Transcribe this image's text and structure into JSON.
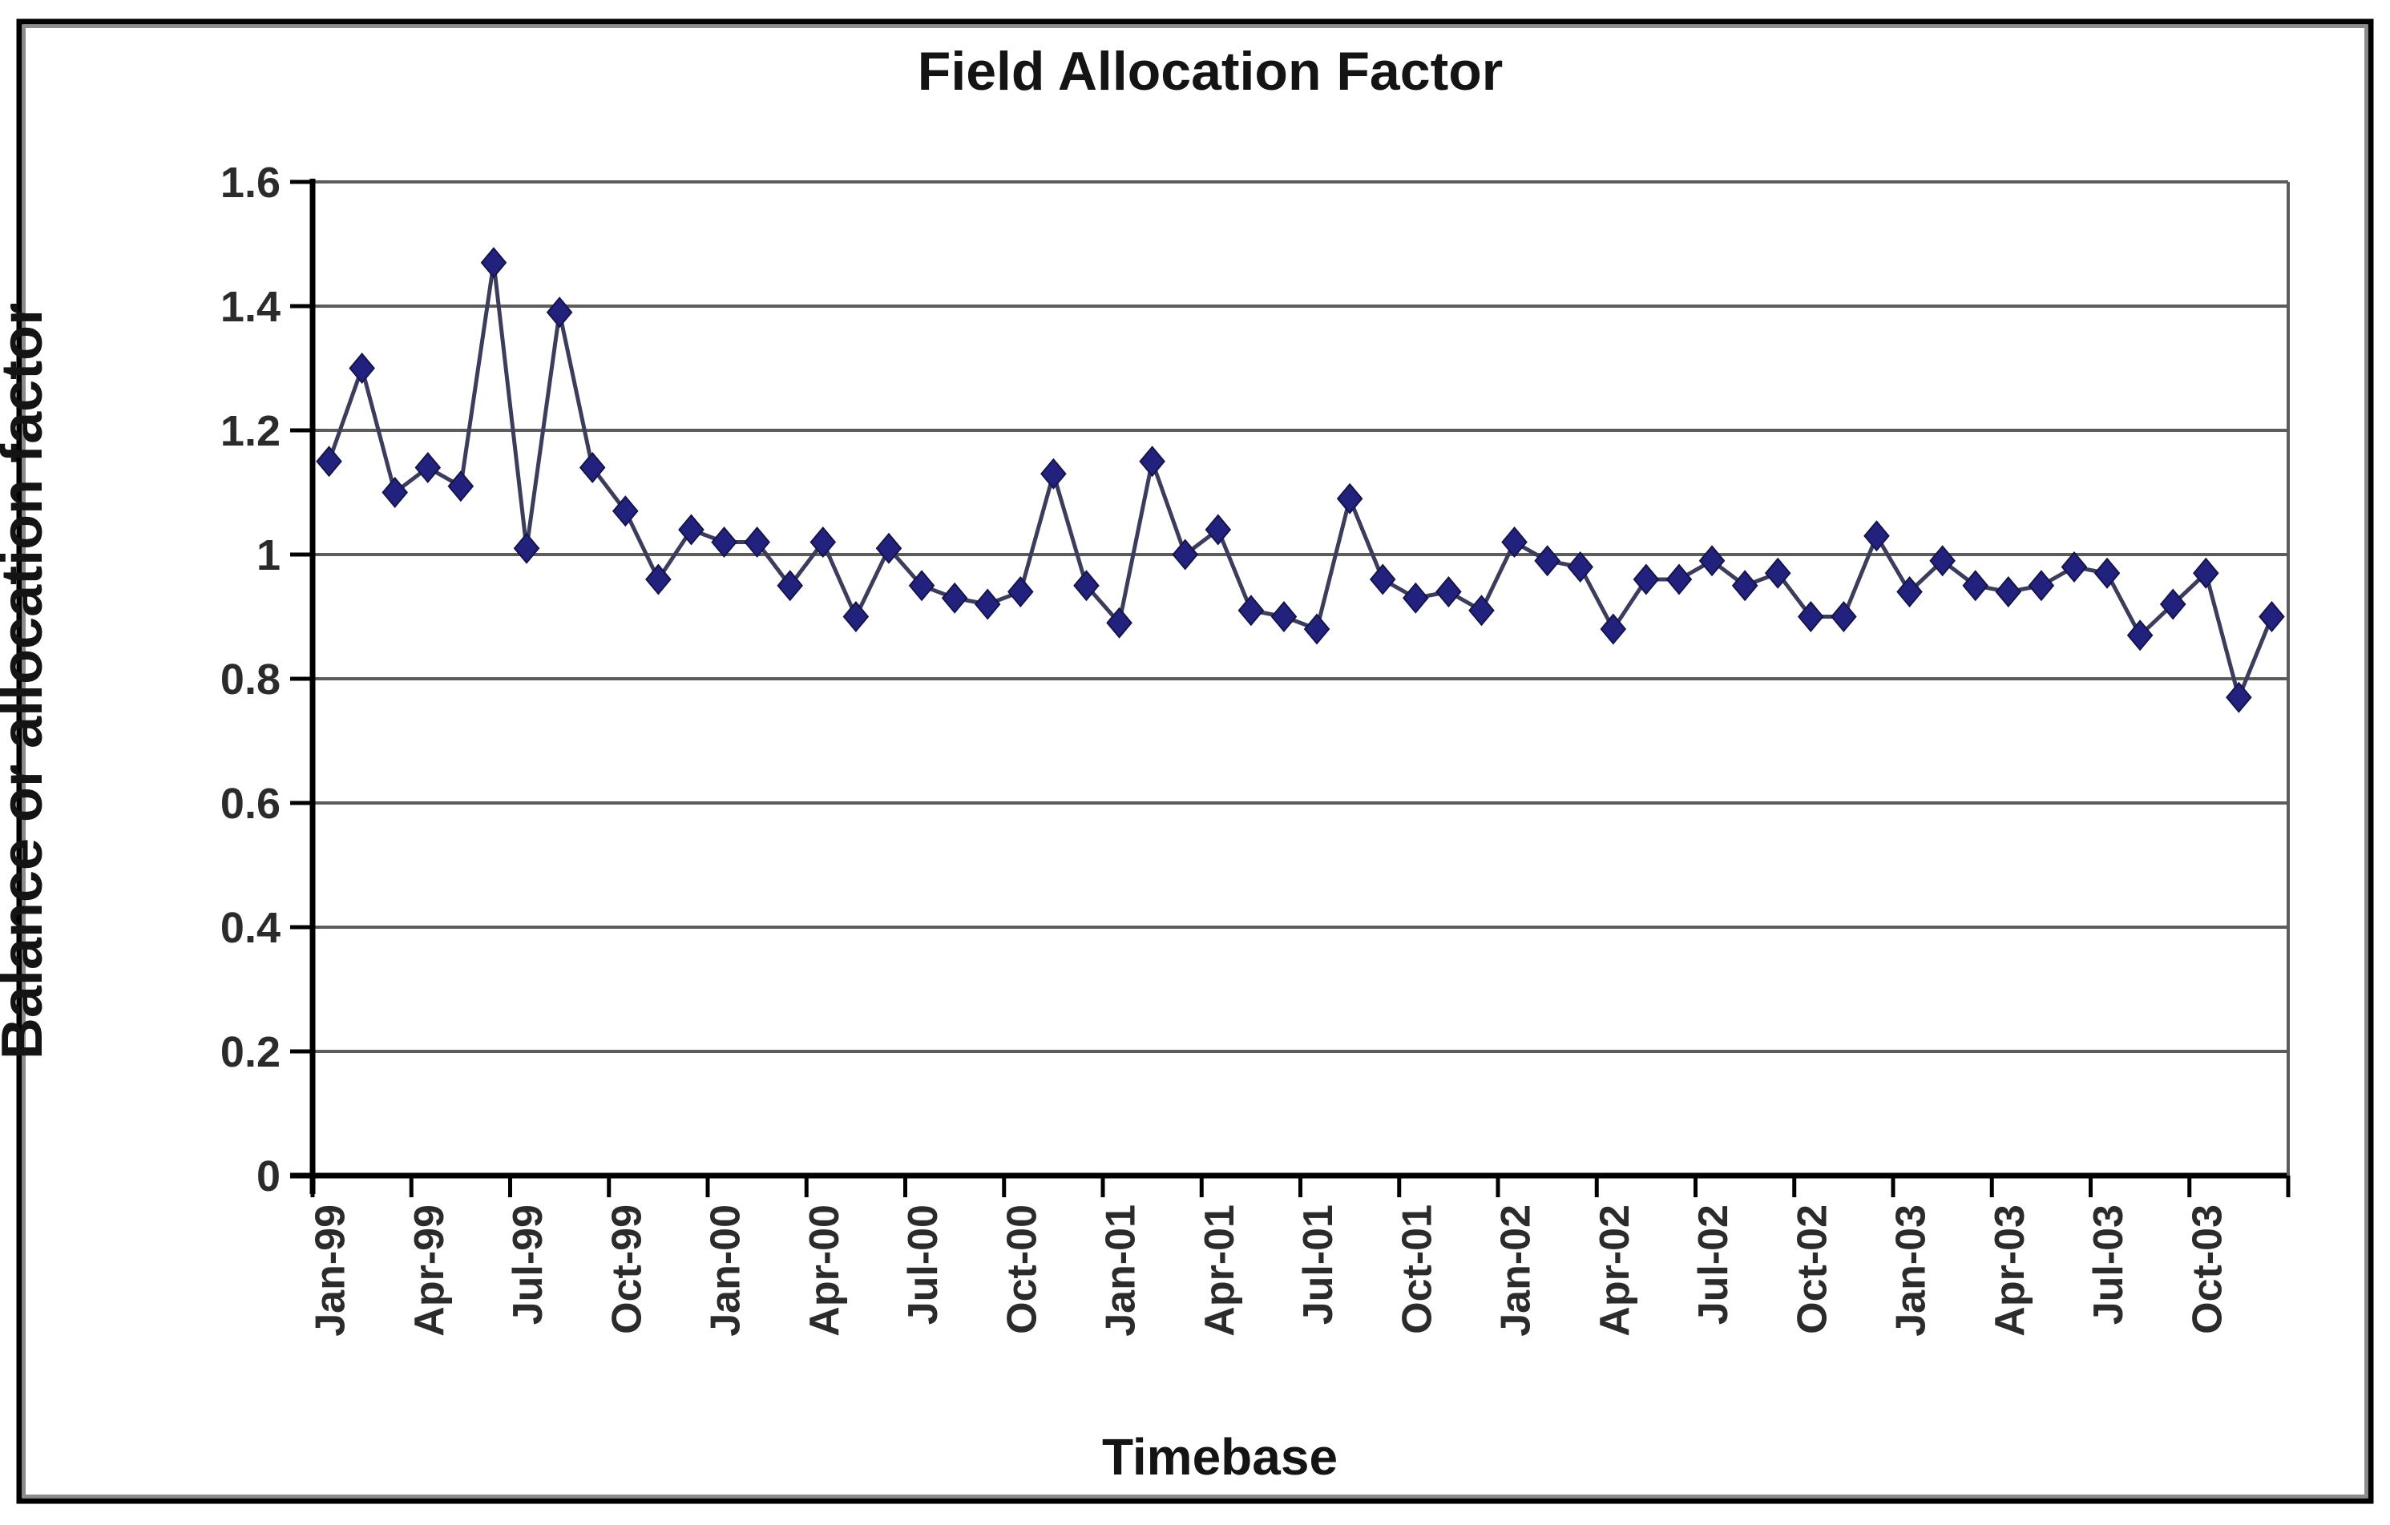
{
  "figure": {
    "title": "Field Allocation Factor",
    "x_axis_title": "Timebase",
    "y_axis_title": "Balance or allocation factor"
  },
  "chart_data": {
    "type": "line",
    "title": "Field Allocation Factor",
    "xlabel": "Timebase",
    "ylabel": "Balance or allocation factor",
    "ylim": [
      0,
      1.6
    ],
    "ytick_step": 0.2,
    "ytick_labels": [
      "0",
      "0.2",
      "0.4",
      "0.6",
      "0.8",
      "1",
      "1.2",
      "1.4",
      "1.6"
    ],
    "xtick_labels": [
      "Jan-99",
      "Apr-99",
      "Jul-99",
      "Oct-99",
      "Jan-00",
      "Apr-00",
      "Jul-00",
      "Oct-00",
      "Jan-01",
      "Apr-01",
      "Jul-01",
      "Oct-01",
      "Jan-02",
      "Apr-02",
      "Jul-02",
      "Oct-02",
      "Jan-03",
      "Apr-03",
      "Jul-03",
      "Oct-03"
    ],
    "x_label_every": 3,
    "grid": true,
    "legend": false,
    "marker": "diamond",
    "colors": {
      "marker": "#22227e",
      "marker_stroke": "#14144a",
      "line": "#3c3c5c",
      "grid": "#5c5c5c",
      "axis": "#000000",
      "tick_text": "#2b2b2b",
      "title_text": "#141414",
      "border": "#000000",
      "border_shadow": "#8c8c8c"
    },
    "categories": [
      "Jan-99",
      "Feb-99",
      "Mar-99",
      "Apr-99",
      "May-99",
      "Jun-99",
      "Jul-99",
      "Aug-99",
      "Sep-99",
      "Oct-99",
      "Nov-99",
      "Dec-99",
      "Jan-00",
      "Feb-00",
      "Mar-00",
      "Apr-00",
      "May-00",
      "Jun-00",
      "Jul-00",
      "Aug-00",
      "Sep-00",
      "Oct-00",
      "Nov-00",
      "Dec-00",
      "Jan-01",
      "Feb-01",
      "Mar-01",
      "Apr-01",
      "May-01",
      "Jun-01",
      "Jul-01",
      "Aug-01",
      "Sep-01",
      "Oct-01",
      "Nov-01",
      "Dec-01",
      "Jan-02",
      "Feb-02",
      "Mar-02",
      "Apr-02",
      "May-02",
      "Jun-02",
      "Jul-02",
      "Aug-02",
      "Sep-02",
      "Oct-02",
      "Nov-02",
      "Dec-02",
      "Jan-03",
      "Feb-03",
      "Mar-03",
      "Apr-03",
      "May-03",
      "Jun-03",
      "Jul-03",
      "Aug-03",
      "Sep-03",
      "Oct-03",
      "Nov-03",
      "Dec-03"
    ],
    "values": [
      1.15,
      1.3,
      1.1,
      1.14,
      1.11,
      1.47,
      1.01,
      1.39,
      1.14,
      1.07,
      0.96,
      1.04,
      1.02,
      1.02,
      0.95,
      1.02,
      0.9,
      1.01,
      0.95,
      0.93,
      0.92,
      0.94,
      1.13,
      0.95,
      0.89,
      1.15,
      1.0,
      1.04,
      0.91,
      0.9,
      0.88,
      1.09,
      0.96,
      0.93,
      0.94,
      0.91,
      1.02,
      0.99,
      0.98,
      0.88,
      0.96,
      0.96,
      0.99,
      0.95,
      0.97,
      0.9,
      0.9,
      1.03,
      0.94,
      0.99,
      0.95,
      0.94,
      0.95,
      0.98,
      0.97,
      0.87,
      0.92,
      0.97,
      0.77,
      0.9
    ]
  }
}
